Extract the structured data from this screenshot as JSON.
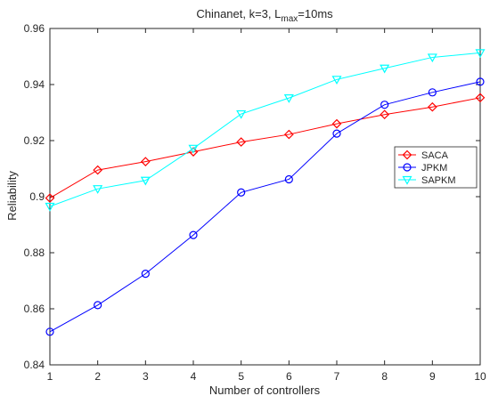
{
  "chart_data": {
    "type": "line",
    "title_parts": {
      "prefix": "Chinanet, k=3, L",
      "subscript": "max",
      "suffix": "=10ms"
    },
    "xlabel": "Number of controllers",
    "ylabel": "Reliability",
    "x": [
      1,
      2,
      3,
      4,
      5,
      6,
      7,
      8,
      9,
      10
    ],
    "xlim": [
      1,
      10
    ],
    "ylim": [
      0.84,
      0.96
    ],
    "xticks": [
      1,
      2,
      3,
      4,
      5,
      6,
      7,
      8,
      9,
      10
    ],
    "yticks": [
      0.84,
      0.86,
      0.88,
      0.9,
      0.92,
      0.94,
      0.96
    ],
    "ytick_labels": [
      "0.84",
      "0.86",
      "0.88",
      "0.9",
      "0.92",
      "0.94",
      "0.96"
    ],
    "grid": false,
    "legend_position": "right",
    "series": [
      {
        "name": "SACA",
        "color": "#ff0000",
        "marker": "diamond",
        "values": [
          0.8995,
          0.9095,
          0.9125,
          0.916,
          0.9195,
          0.9222,
          0.926,
          0.9293,
          0.932,
          0.9353
        ]
      },
      {
        "name": "JPKM",
        "color": "#0000ff",
        "marker": "circle",
        "values": [
          0.8518,
          0.8613,
          0.8725,
          0.8863,
          0.9015,
          0.9062,
          0.9225,
          0.9328,
          0.9372,
          0.941
        ]
      },
      {
        "name": "SAPKM",
        "color": "#00ffff",
        "marker": "triangle-down",
        "values": [
          0.8965,
          0.9028,
          0.9058,
          0.9172,
          0.9295,
          0.9352,
          0.9418,
          0.9458,
          0.9497,
          0.9513
        ]
      }
    ]
  }
}
